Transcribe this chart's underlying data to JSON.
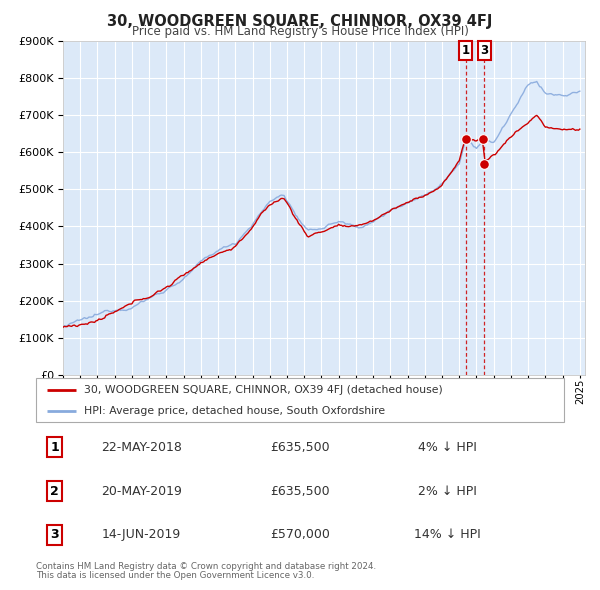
{
  "title": "30, WOODGREEN SQUARE, CHINNOR, OX39 4FJ",
  "subtitle": "Price paid vs. HM Land Registry's House Price Index (HPI)",
  "red_label": "30, WOODGREEN SQUARE, CHINNOR, OX39 4FJ (detached house)",
  "blue_label": "HPI: Average price, detached house, South Oxfordshire",
  "footer1": "Contains HM Land Registry data © Crown copyright and database right 2024.",
  "footer2": "This data is licensed under the Open Government Licence v3.0.",
  "transactions": [
    {
      "num": "1",
      "date": "22-MAY-2018",
      "price": "£635,500",
      "hpi": "4% ↓ HPI",
      "year": 2018.38,
      "value": 635500
    },
    {
      "num": "2",
      "date": "20-MAY-2019",
      "price": "£635,500",
      "hpi": "2% ↓ HPI",
      "year": 2019.38,
      "value": 635500
    },
    {
      "num": "3",
      "date": "14-JUN-2019",
      "price": "£570,000",
      "hpi": "14% ↓ HPI",
      "year": 2019.46,
      "value": 570000
    }
  ],
  "vline_years": [
    2018.38,
    2019.46
  ],
  "vline_labels": [
    "1",
    "3"
  ],
  "ylim": [
    0,
    900000
  ],
  "xlim_start": 1995.0,
  "xlim_end": 2025.3,
  "bg_color": "#dce9f8",
  "bg_highlight": "#e8f0fb",
  "grid_color": "#ffffff",
  "red_color": "#cc0000",
  "blue_color": "#88aadd",
  "title_color": "#222222",
  "subtitle_color": "#444444",
  "text_color": "#333333",
  "footer_color": "#666666",
  "legend_border_color": "#aaaaaa",
  "spine_color": "#bbbbbb"
}
